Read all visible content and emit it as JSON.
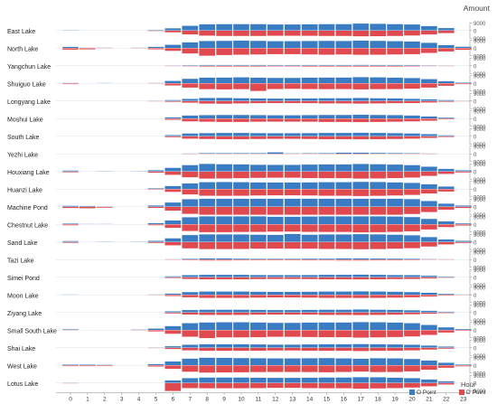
{
  "chart_data": {
    "type": "bar",
    "orientation": "diverging-up-down",
    "value_axis_title": "Amount",
    "x_axis_title": "Hour",
    "x": [
      0,
      1,
      2,
      3,
      4,
      5,
      6,
      7,
      8,
      9,
      10,
      11,
      12,
      13,
      14,
      15,
      16,
      17,
      18,
      19,
      20,
      21,
      22,
      23
    ],
    "row_ticks": [
      "9000",
      "0",
      "9000"
    ],
    "legend": [
      {
        "name": "O Point",
        "color": "#3a7cc3"
      },
      {
        "name": "D Point",
        "color": "#e04a4f"
      }
    ],
    "legend_placement": "bottom-right",
    "rows": [
      {
        "name": "East Lake",
        "o": [
          300,
          0,
          0,
          0,
          0,
          800,
          2600,
          5300,
          7000,
          7200,
          7200,
          7200,
          6800,
          6800,
          7000,
          7200,
          7200,
          7800,
          7600,
          7200,
          6800,
          5000,
          2800,
          0
        ],
        "d": [
          0,
          0,
          0,
          0,
          0,
          700,
          2200,
          4400,
          5800,
          6200,
          6200,
          6200,
          5900,
          5900,
          6000,
          6200,
          6200,
          6600,
          6400,
          6200,
          5700,
          4500,
          3000,
          0
        ]
      },
      {
        "name": "North Lake",
        "o": [
          1500,
          600,
          300,
          0,
          600,
          1600,
          3800,
          6500,
          8000,
          8200,
          8400,
          8200,
          7800,
          7800,
          8000,
          8200,
          8000,
          8400,
          8200,
          7800,
          7400,
          6000,
          3500,
          1700
        ],
        "d": [
          1800,
          1400,
          600,
          0,
          500,
          1400,
          3200,
          6000,
          8600,
          7800,
          7400,
          7200,
          6800,
          6800,
          7200,
          7400,
          7200,
          7600,
          7400,
          7200,
          6800,
          5400,
          3800,
          2000
        ]
      },
      {
        "name": "Yangchun Lake",
        "o": [
          0,
          0,
          0,
          0,
          0,
          0,
          400,
          800,
          1000,
          1000,
          1000,
          1000,
          900,
          900,
          1000,
          1000,
          1000,
          1100,
          1000,
          1000,
          900,
          700,
          400,
          0
        ],
        "d": [
          0,
          0,
          0,
          0,
          0,
          0,
          300,
          700,
          900,
          900,
          900,
          900,
          800,
          800,
          900,
          900,
          900,
          1000,
          900,
          900,
          800,
          600,
          300,
          0
        ]
      },
      {
        "name": "Shuiguo Lake",
        "o": [
          600,
          0,
          400,
          0,
          0,
          500,
          2800,
          5200,
          6400,
          6600,
          6800,
          6400,
          6200,
          6200,
          6400,
          6600,
          6600,
          7000,
          6800,
          6400,
          6000,
          4800,
          2600,
          900
        ],
        "d": [
          900,
          0,
          0,
          0,
          0,
          400,
          2400,
          4800,
          6600,
          6800,
          6600,
          8600,
          6400,
          6200,
          6400,
          6600,
          6400,
          6800,
          6600,
          6400,
          6000,
          4800,
          2800,
          1100
        ]
      },
      {
        "name": "Longyang Lake",
        "o": [
          0,
          0,
          0,
          0,
          0,
          300,
          1200,
          2400,
          3400,
          3600,
          3200,
          3000,
          2800,
          2800,
          3000,
          3200,
          3200,
          3400,
          3200,
          3000,
          2600,
          2000,
          1200,
          400
        ],
        "d": [
          0,
          0,
          0,
          0,
          0,
          200,
          1000,
          2000,
          3000,
          3200,
          2800,
          2600,
          2400,
          2400,
          2600,
          2800,
          2800,
          3000,
          2800,
          2600,
          2400,
          1800,
          1000,
          300
        ]
      },
      {
        "name": "Moshui Lake",
        "o": [
          0,
          0,
          0,
          0,
          0,
          0,
          1600,
          3600,
          4000,
          4200,
          4200,
          4000,
          3800,
          3800,
          4000,
          4200,
          4200,
          4400,
          4200,
          4000,
          3600,
          2600,
          1200,
          0
        ],
        "d": [
          0,
          0,
          0,
          0,
          0,
          0,
          1400,
          3200,
          3600,
          3800,
          3800,
          3600,
          3400,
          3400,
          3600,
          3800,
          3800,
          4000,
          3800,
          3600,
          3200,
          2400,
          1000,
          0
        ]
      },
      {
        "name": "South Lake",
        "o": [
          0,
          0,
          0,
          0,
          0,
          0,
          1400,
          3200,
          3600,
          3800,
          3800,
          3600,
          3400,
          3400,
          3600,
          3800,
          3800,
          4000,
          3800,
          3600,
          3200,
          2400,
          1200,
          0
        ],
        "d": [
          0,
          0,
          0,
          0,
          0,
          0,
          1200,
          2800,
          3200,
          3400,
          3400,
          3200,
          3000,
          3000,
          3200,
          3400,
          3400,
          3600,
          3400,
          3200,
          2800,
          2000,
          1000,
          0
        ]
      },
      {
        "name": "Yezhi Lake",
        "o": [
          0,
          0,
          0,
          0,
          0,
          0,
          0,
          500,
          900,
          900,
          900,
          900,
          1800,
          700,
          800,
          900,
          1400,
          1400,
          1200,
          1000,
          800,
          500,
          0,
          0
        ],
        "d": [
          0,
          0,
          0,
          0,
          0,
          0,
          0,
          300,
          600,
          600,
          600,
          600,
          700,
          500,
          600,
          600,
          700,
          700,
          600,
          500,
          400,
          300,
          0,
          0
        ]
      },
      {
        "name": "Houxiang Lake",
        "o": [
          1200,
          0,
          300,
          0,
          300,
          1600,
          4200,
          7200,
          8600,
          8200,
          8000,
          7600,
          7400,
          7400,
          7800,
          8000,
          8000,
          8400,
          8200,
          7800,
          7200,
          5400,
          3000,
          1400
        ],
        "d": [
          1000,
          0,
          0,
          0,
          0,
          1400,
          3800,
          6600,
          8000,
          7800,
          7600,
          7200,
          7000,
          7000,
          7400,
          7600,
          7600,
          8000,
          7800,
          7400,
          6800,
          5000,
          2800,
          1200
        ]
      },
      {
        "name": "Huanzi Lake",
        "o": [
          0,
          0,
          0,
          0,
          0,
          900,
          3600,
          6400,
          7800,
          8000,
          7800,
          7600,
          7400,
          7400,
          7600,
          7800,
          7800,
          8200,
          8000,
          7600,
          7000,
          5400,
          3000,
          0
        ],
        "d": [
          0,
          0,
          0,
          0,
          0,
          800,
          3200,
          6000,
          7400,
          7600,
          7400,
          7200,
          7000,
          7000,
          7200,
          7400,
          7400,
          7800,
          7600,
          7200,
          6600,
          5000,
          2800,
          0
        ]
      },
      {
        "name": "Machine Pond",
        "o": [
          1200,
          1000,
          600,
          0,
          0,
          1600,
          4800,
          8400,
          9000,
          9000,
          9000,
          9000,
          9000,
          9000,
          9000,
          9000,
          9000,
          9000,
          9000,
          9000,
          8600,
          6400,
          3600,
          1400
        ],
        "d": [
          1600,
          1800,
          1200,
          0,
          0,
          1400,
          4400,
          8000,
          9000,
          9000,
          9000,
          9000,
          9000,
          9000,
          9000,
          9000,
          9000,
          9000,
          9000,
          9000,
          8200,
          6000,
          3400,
          1600
        ]
      },
      {
        "name": "Chestnut Lake",
        "o": [
          1000,
          600,
          300,
          0,
          0,
          1400,
          4400,
          8000,
          9000,
          9000,
          9000,
          9000,
          8600,
          8600,
          8800,
          9000,
          9000,
          9000,
          9000,
          8800,
          8200,
          6200,
          3400,
          1200
        ],
        "d": [
          1200,
          0,
          0,
          0,
          0,
          1200,
          4000,
          7400,
          8800,
          8800,
          8600,
          8400,
          8200,
          8200,
          8400,
          8600,
          8600,
          9000,
          8800,
          8400,
          7800,
          5800,
          3200,
          1400
        ]
      },
      {
        "name": "Sand Lake",
        "o": [
          1200,
          0,
          300,
          0,
          300,
          1400,
          4200,
          7800,
          8600,
          8600,
          8400,
          8200,
          8000,
          9000,
          8200,
          8400,
          8400,
          8800,
          8600,
          8200,
          7600,
          5600,
          3000,
          1400
        ],
        "d": [
          1000,
          0,
          0,
          0,
          0,
          1200,
          3800,
          7200,
          8000,
          8000,
          7800,
          7600,
          7400,
          7600,
          7600,
          7800,
          7800,
          8200,
          8000,
          7600,
          7000,
          5200,
          2800,
          1200
        ]
      },
      {
        "name": "Tazi Lake",
        "o": [
          0,
          0,
          0,
          0,
          0,
          0,
          500,
          1000,
          1500,
          1400,
          1200,
          1000,
          1000,
          1000,
          1200,
          1200,
          1400,
          1400,
          1300,
          1200,
          1000,
          700,
          400,
          0
        ],
        "d": [
          0,
          0,
          0,
          0,
          0,
          0,
          400,
          800,
          1200,
          1200,
          1000,
          900,
          900,
          900,
          1000,
          1000,
          1200,
          1200,
          1100,
          1000,
          800,
          600,
          300,
          0
        ]
      },
      {
        "name": "Simei Pond",
        "o": [
          0,
          0,
          0,
          0,
          0,
          0,
          1200,
          2400,
          2800,
          2800,
          2800,
          2600,
          2400,
          2400,
          2600,
          2800,
          2800,
          3000,
          2800,
          2600,
          2400,
          1800,
          900,
          0
        ],
        "d": [
          0,
          0,
          0,
          0,
          0,
          0,
          1000,
          2000,
          2400,
          2400,
          2400,
          2200,
          2000,
          2000,
          2200,
          2400,
          2400,
          2600,
          2400,
          2200,
          2000,
          1400,
          700,
          0
        ]
      },
      {
        "name": "Moon Lake",
        "o": [
          300,
          0,
          0,
          0,
          0,
          300,
          1600,
          3200,
          3800,
          3800,
          3800,
          3600,
          3400,
          3400,
          3600,
          3800,
          3800,
          4000,
          3800,
          3600,
          3200,
          2400,
          1200,
          400
        ],
        "d": [
          0,
          0,
          0,
          0,
          0,
          300,
          1400,
          2800,
          3400,
          3400,
          3400,
          3200,
          3000,
          3000,
          3200,
          3400,
          3400,
          3600,
          3400,
          3200,
          2800,
          2000,
          1000,
          300
        ]
      },
      {
        "name": "Ziyang Lake",
        "o": [
          0,
          0,
          0,
          0,
          0,
          0,
          1400,
          2800,
          3200,
          3200,
          3200,
          3000,
          2800,
          2800,
          3000,
          3200,
          3200,
          3400,
          3200,
          3000,
          2600,
          2000,
          1000,
          0
        ],
        "d": [
          0,
          0,
          0,
          0,
          0,
          0,
          1200,
          2400,
          2800,
          2800,
          2800,
          2600,
          2400,
          2400,
          2600,
          2800,
          2800,
          3000,
          2800,
          2600,
          2200,
          1600,
          800,
          0
        ]
      },
      {
        "name": "Small South Lake",
        "o": [
          900,
          0,
          0,
          0,
          700,
          1800,
          4600,
          7800,
          8600,
          8800,
          8800,
          8600,
          8200,
          8200,
          8400,
          8600,
          8600,
          9000,
          8800,
          8400,
          7800,
          5800,
          3200,
          1200
        ],
        "d": [
          600,
          0,
          0,
          0,
          500,
          1600,
          4200,
          7400,
          9000,
          8200,
          8200,
          8000,
          7600,
          7600,
          7800,
          8000,
          8000,
          8400,
          8200,
          7800,
          7200,
          5400,
          2800,
          900
        ]
      },
      {
        "name": "Shai Lake",
        "o": [
          0,
          0,
          0,
          0,
          0,
          400,
          1800,
          3400,
          4000,
          4000,
          4000,
          3800,
          3600,
          3600,
          3800,
          4000,
          4000,
          4200,
          4000,
          3800,
          3400,
          2600,
          1400,
          0
        ],
        "d": [
          0,
          0,
          0,
          0,
          0,
          300,
          1600,
          3000,
          3600,
          3600,
          3600,
          3400,
          3200,
          3200,
          3400,
          3600,
          3600,
          3800,
          3600,
          3400,
          3000,
          2200,
          1200,
          0
        ]
      },
      {
        "name": "West Lake",
        "o": [
          900,
          900,
          700,
          0,
          0,
          1500,
          4400,
          7600,
          8600,
          8400,
          8200,
          8000,
          7800,
          7800,
          8000,
          8200,
          7800,
          7400,
          8000,
          7800,
          7200,
          5400,
          3000,
          1000
        ],
        "d": [
          1100,
          1100,
          900,
          0,
          0,
          1400,
          4000,
          7200,
          8200,
          8000,
          7800,
          7600,
          7400,
          7400,
          7600,
          7800,
          7400,
          7000,
          7600,
          7400,
          6800,
          5000,
          2800,
          1200
        ]
      },
      {
        "name": "Lotus Lake",
        "o": [
          200,
          0,
          0,
          0,
          0,
          0,
          3000,
          5400,
          6200,
          6200,
          6200,
          6000,
          5800,
          5800,
          6000,
          6200,
          6200,
          6600,
          6400,
          6000,
          5400,
          4000,
          2000,
          0
        ],
        "d": [
          200,
          0,
          0,
          0,
          0,
          0,
          9000,
          5800,
          6000,
          6000,
          6000,
          5800,
          5600,
          5600,
          5800,
          6000,
          6000,
          6400,
          6200,
          5800,
          5200,
          3800,
          1800,
          0
        ]
      }
    ]
  }
}
